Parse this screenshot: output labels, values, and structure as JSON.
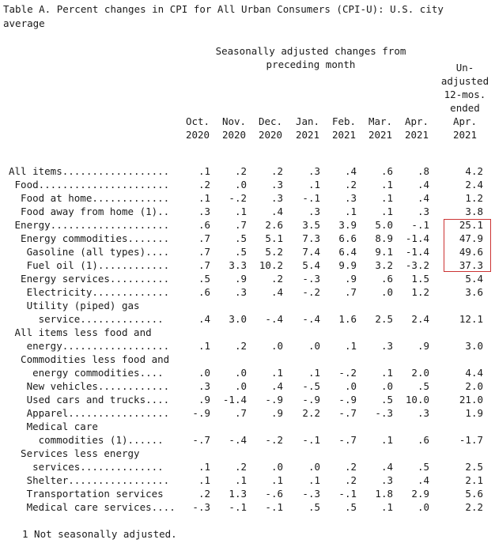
{
  "title": "Table A. Percent changes in CPI for All Urban Consumers (CPI-U): U.S. city average",
  "group_header": "Seasonally adjusted changes from preceding month",
  "columns": [
    [
      "Oct.",
      "2020"
    ],
    [
      "Nov.",
      "2020"
    ],
    [
      "Dec.",
      "2020"
    ],
    [
      "Jan.",
      "2021"
    ],
    [
      "Feb.",
      "2021"
    ],
    [
      "Mar.",
      "2021"
    ],
    [
      "Apr.",
      "2021"
    ],
    [
      "Un-",
      "adjusted",
      "12-mos.",
      "ended",
      "Apr.",
      "2021"
    ]
  ],
  "rows": [
    {
      "label": [
        "All items.................."
      ],
      "values": [
        ".1",
        ".2",
        ".2",
        ".3",
        ".4",
        ".6",
        ".8",
        "4.2"
      ]
    },
    {
      "label": [
        " Food......................"
      ],
      "values": [
        ".2",
        ".0",
        ".3",
        ".1",
        ".2",
        ".1",
        ".4",
        "2.4"
      ]
    },
    {
      "label": [
        "  Food at home............."
      ],
      "values": [
        ".1",
        "-.2",
        ".3",
        "-.1",
        ".3",
        ".1",
        ".4",
        "1.2"
      ]
    },
    {
      "label": [
        "  Food away from home (1).."
      ],
      "values": [
        ".3",
        ".1",
        ".4",
        ".3",
        ".1",
        ".1",
        ".3",
        "3.8"
      ]
    },
    {
      "label": [
        " Energy...................."
      ],
      "values": [
        ".6",
        ".7",
        "2.6",
        "3.5",
        "3.9",
        "5.0",
        "-.1",
        "25.1"
      ]
    },
    {
      "label": [
        "  Energy commodities......."
      ],
      "values": [
        ".7",
        ".5",
        "5.1",
        "7.3",
        "6.6",
        "8.9",
        "-1.4",
        "47.9"
      ]
    },
    {
      "label": [
        "   Gasoline (all types)...."
      ],
      "values": [
        ".7",
        ".5",
        "5.2",
        "7.4",
        "6.4",
        "9.1",
        "-1.4",
        "49.6"
      ]
    },
    {
      "label": [
        "   Fuel oil (1)............"
      ],
      "values": [
        ".7",
        "3.3",
        "10.2",
        "5.4",
        "9.9",
        "3.2",
        "-3.2",
        "37.3"
      ]
    },
    {
      "label": [
        "  Energy services.........."
      ],
      "values": [
        ".5",
        ".9",
        ".2",
        "-.3",
        ".9",
        ".6",
        "1.5",
        "5.4"
      ]
    },
    {
      "label": [
        "   Electricity............."
      ],
      "values": [
        ".6",
        ".3",
        ".4",
        "-.2",
        ".7",
        ".0",
        "1.2",
        "3.6"
      ]
    },
    {
      "label": [
        "   Utility (piped) gas",
        "     service.............."
      ],
      "values": [
        ".4",
        "3.0",
        "-.4",
        "-.4",
        "1.6",
        "2.5",
        "2.4",
        "12.1"
      ]
    },
    {
      "label": [
        " All items less food and",
        "   energy.................."
      ],
      "values": [
        ".1",
        ".2",
        ".0",
        ".0",
        ".1",
        ".3",
        ".9",
        "3.0"
      ]
    },
    {
      "label": [
        "  Commodities less food and",
        "    energy commodities...."
      ],
      "values": [
        ".0",
        ".0",
        ".1",
        ".1",
        "-.2",
        ".1",
        "2.0",
        "4.4"
      ]
    },
    {
      "label": [
        "   New vehicles............"
      ],
      "values": [
        ".3",
        ".0",
        ".4",
        "-.5",
        ".0",
        ".0",
        ".5",
        "2.0"
      ]
    },
    {
      "label": [
        "   Used cars and trucks...."
      ],
      "values": [
        ".9",
        "-1.4",
        "-.9",
        "-.9",
        "-.9",
        ".5",
        "10.0",
        "21.0"
      ]
    },
    {
      "label": [
        "   Apparel................."
      ],
      "values": [
        "-.9",
        ".7",
        ".9",
        "2.2",
        "-.7",
        "-.3",
        ".3",
        "1.9"
      ]
    },
    {
      "label": [
        "   Medical care",
        "     commodities (1)......"
      ],
      "values": [
        "-.7",
        "-.4",
        "-.2",
        "-.1",
        "-.7",
        ".1",
        ".6",
        "-1.7"
      ]
    },
    {
      "label": [
        "  Services less energy",
        "    services.............."
      ],
      "values": [
        ".1",
        ".2",
        ".0",
        ".0",
        ".2",
        ".4",
        ".5",
        "2.5"
      ]
    },
    {
      "label": [
        "   Shelter................."
      ],
      "values": [
        ".1",
        ".1",
        ".1",
        ".1",
        ".2",
        ".3",
        ".4",
        "2.1"
      ]
    },
    {
      "label": [
        "   Transportation services"
      ],
      "values": [
        ".2",
        "1.3",
        "-.6",
        "-.3",
        "-.1",
        "1.8",
        "2.9",
        "5.6"
      ]
    },
    {
      "label": [
        "   Medical care services...."
      ],
      "values": [
        "-.3",
        "-.1",
        "-.1",
        ".5",
        ".5",
        ".1",
        ".0",
        "2.2"
      ]
    }
  ],
  "footnote": "1 Not seasonally adjusted.",
  "highlight_color": "#cc3333"
}
